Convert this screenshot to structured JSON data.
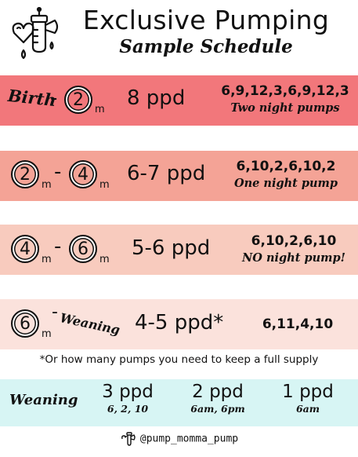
{
  "header": {
    "title": "Exclusive Pumping",
    "subtitle": "Sample Schedule",
    "logo_icon": "baby-bottle-heart-icon"
  },
  "rows": [
    {
      "from": "Birth",
      "to_month": "2",
      "unit": "m",
      "ppd": "8 ppd",
      "times": "6,9,12,3,6,9,12,3",
      "note": "Two night pumps",
      "color": "#f2777b"
    },
    {
      "from_month": "2",
      "to_month": "4",
      "unit": "m",
      "ppd": "6-7 ppd",
      "times": "6,10,2,6,10,2",
      "note": "One night pump",
      "color": "#f4a396"
    },
    {
      "from_month": "4",
      "to_month": "6",
      "unit": "m",
      "ppd": "5-6 ppd",
      "times": "6,10,2,6,10",
      "note": "NO night pump!",
      "color": "#f8cbbe"
    },
    {
      "from_month": "6",
      "unit": "m",
      "to": "Weaning",
      "ppd": "4-5 ppd*",
      "times": "6,11,4,10",
      "color": "#fbe2dc"
    }
  ],
  "footnote": "*Or how many pumps you need to keep a full supply",
  "weaning": {
    "label": "Weaning",
    "color": "#d7f5f4",
    "options": [
      {
        "ppd": "3 ppd",
        "times": "6, 2, 10"
      },
      {
        "ppd": "2 ppd",
        "times": "6am, 6pm"
      },
      {
        "ppd": "1 ppd",
        "times": "6am"
      }
    ]
  },
  "footer": {
    "handle": "@pump_momma_pump"
  }
}
